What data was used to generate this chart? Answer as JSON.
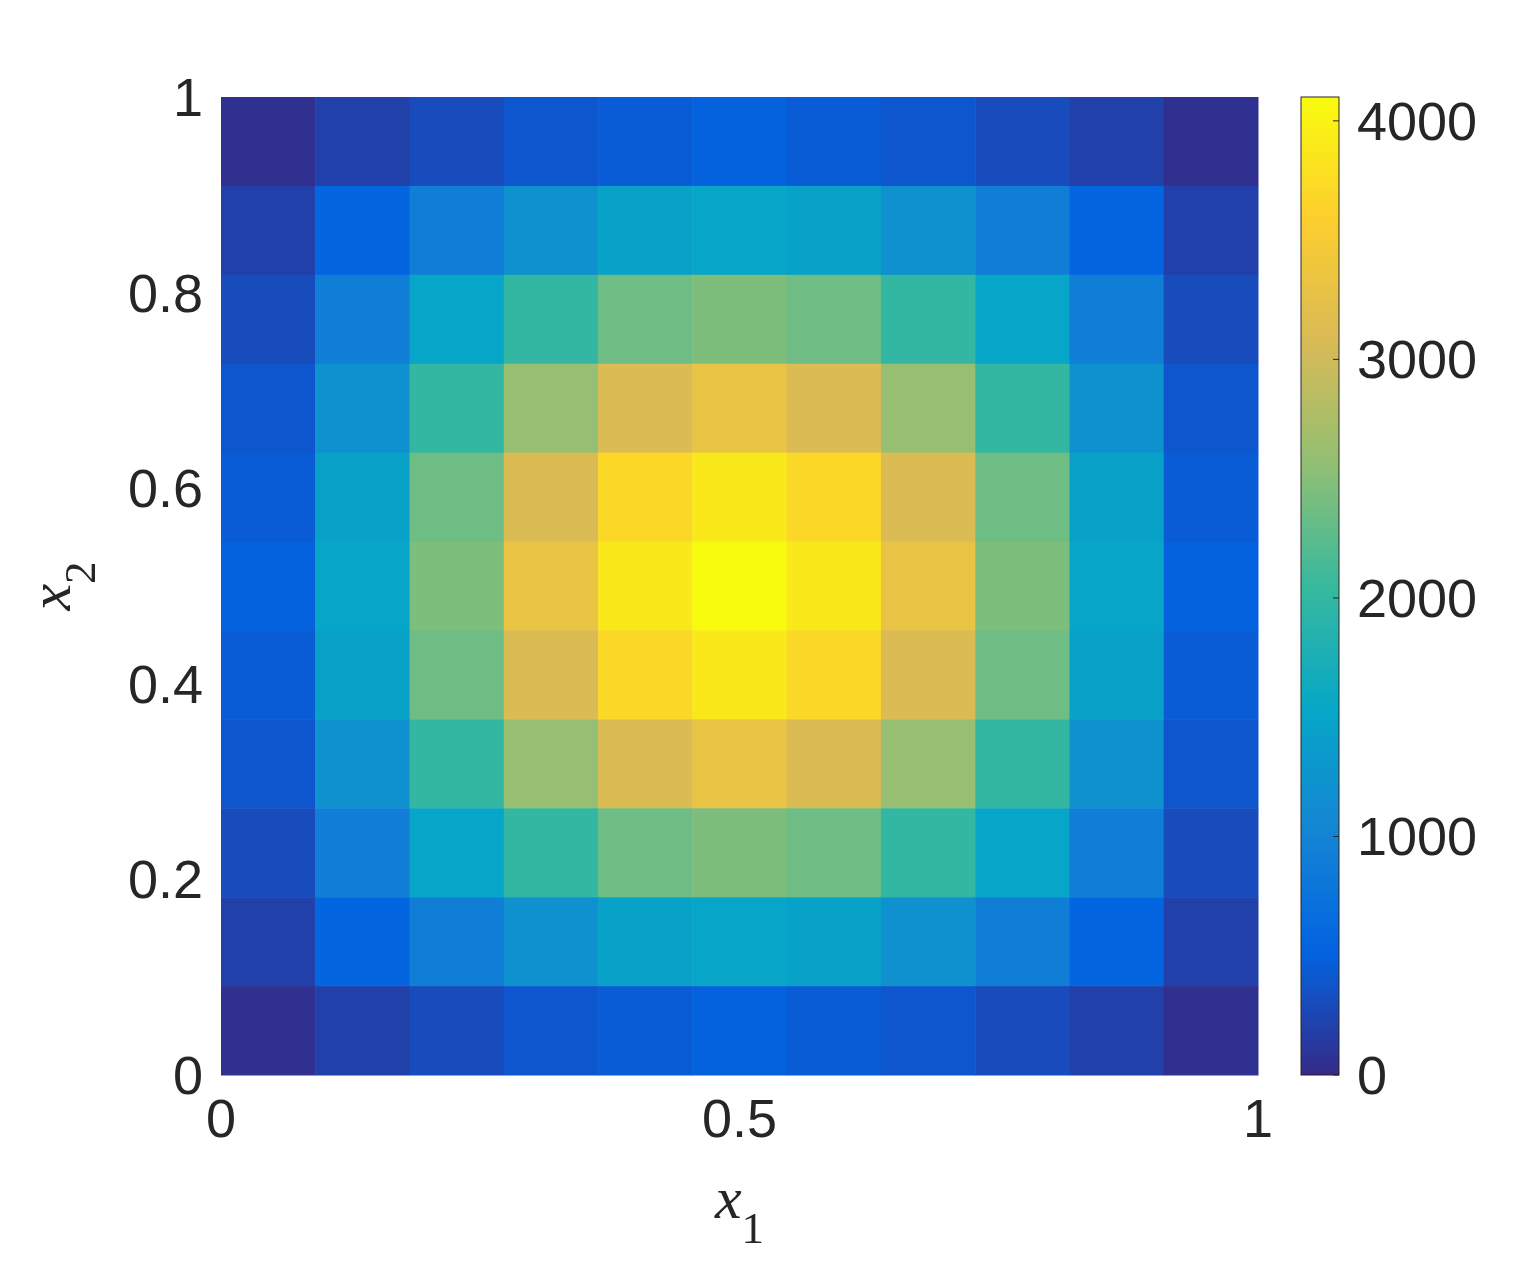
{
  "chart_data": {
    "type": "heatmap",
    "xlabel": "x$_{1}$",
    "ylabel": "x$_{2}$",
    "xlim": [
      0,
      1
    ],
    "xticks": [
      0,
      0.5,
      1
    ],
    "ylim": [
      0,
      1
    ],
    "yticks": [
      0,
      0.2,
      0.4,
      0.6,
      0.8,
      1
    ],
    "clim": [
      0,
      4100
    ],
    "cticks": [
      0,
      1000,
      2000,
      3000,
      4000
    ],
    "colors": [
      "#352a87",
      "#0363e1",
      "#1485d4",
      "#06a7c6",
      "#38b99e",
      "#92bf73",
      "#d9ba56",
      "#fcce2e",
      "#f9fb0e"
    ],
    "cells": [
      [
        50,
        200,
        300,
        400,
        450,
        500,
        450,
        400,
        300,
        200,
        50
      ],
      [
        200,
        550,
        900,
        1200,
        1450,
        1500,
        1450,
        1200,
        900,
        550,
        200
      ],
      [
        300,
        900,
        1500,
        2000,
        2350,
        2450,
        2350,
        2000,
        1500,
        900,
        300
      ],
      [
        400,
        1200,
        2000,
        2600,
        3100,
        3300,
        3100,
        2600,
        2000,
        1200,
        400
      ],
      [
        450,
        1450,
        2350,
        3100,
        3700,
        3900,
        3700,
        3100,
        2350,
        1450,
        450
      ],
      [
        500,
        1500,
        2450,
        3300,
        3900,
        4100,
        3900,
        3300,
        2450,
        1500,
        500
      ],
      [
        450,
        1450,
        2350,
        3100,
        3700,
        3900,
        3700,
        3100,
        2350,
        1450,
        450
      ],
      [
        400,
        1200,
        2000,
        2600,
        3100,
        3300,
        3100,
        2600,
        2000,
        1200,
        400
      ],
      [
        300,
        900,
        1500,
        2000,
        2350,
        2450,
        2350,
        2000,
        1500,
        900,
        300
      ],
      [
        200,
        550,
        900,
        1200,
        1450,
        1500,
        1450,
        1200,
        900,
        550,
        200
      ],
      [
        50,
        200,
        300,
        400,
        450,
        500,
        450,
        400,
        300,
        200,
        50
      ]
    ]
  }
}
